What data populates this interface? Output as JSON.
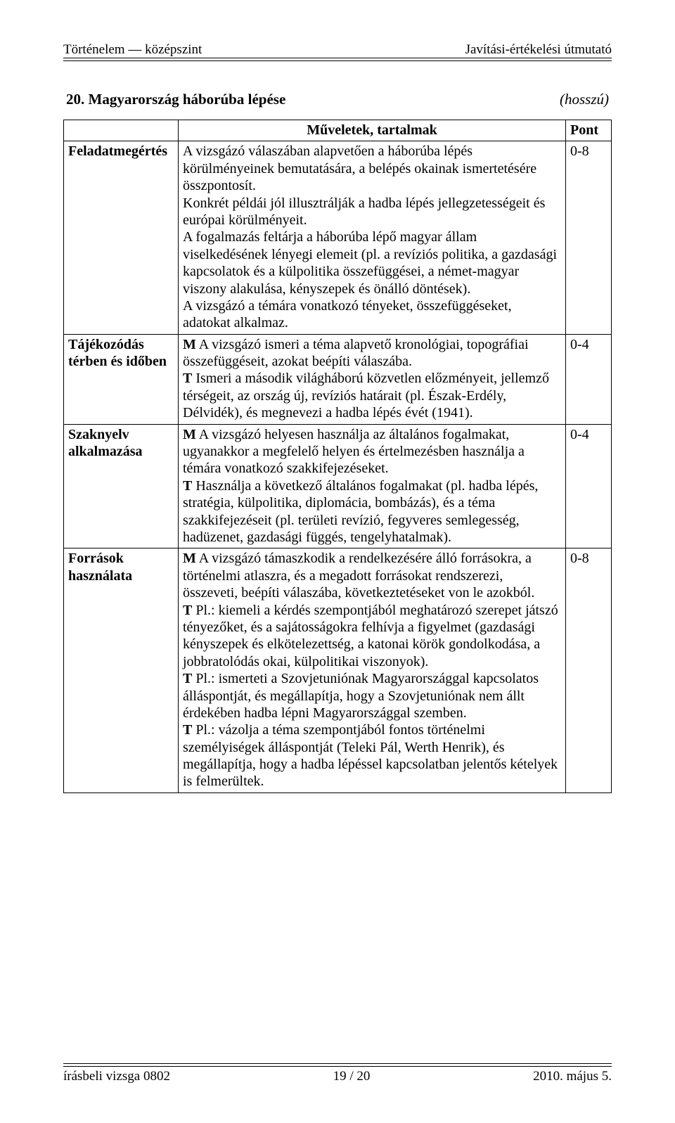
{
  "header": {
    "left": "Történelem — középszint",
    "right": "Javítási-értékelési útmutató"
  },
  "title": {
    "number_label": "20. Magyarország háborúba lépése",
    "type": "(hosszú)"
  },
  "table": {
    "head_center": "Műveletek, tartalmak",
    "head_right": "Pont",
    "rows": [
      {
        "label": "Feladatmegértés",
        "content": "A vizsgázó válaszában alapvetően a háborúba lépés körülményeinek bemutatására, a belépés okainak ismertetésére összpontosít.\nKonkrét példái jól illusztrálják a hadba lépés jellegzetességeit és európai körülményeit.\nA fogalmazás feltárja a háborúba lépő magyar állam viselkedésének lényegi elemeit (pl. a revíziós politika, a gazdasági kapcsolatok és a külpolitika összefüggései, a német-magyar viszony alakulása, kényszерek és önálló döntések).\nA vizsgázó a témára vonatkozó tényeket, összefüggéseket, adatokat alkalmaz.",
        "points": "0-8"
      },
      {
        "label": "Tájékozódás térben és időben",
        "content": "M A vizsgázó ismeri a téma alapvető kronológiai, topográfiai összefüggéseit, azokat beépíti válaszába.\nT Ismeri a második világháború közvetlen előzményeit, jellemző térségeit, az ország új, revíziós határait (pl. Észak-Erdély, Délvidék), és megnevezi a hadba lépés évét (1941).",
        "points": "0-4"
      },
      {
        "label": "Szaknyelv alkalmazása",
        "content": "M A vizsgázó helyesen használja az általános fogalmakat, ugyanakkor a megfelelő helyen és értelmezésben használja a témára vonatkozó szakkifejezéseket.\nT Használja a következő általános fogalmakat (pl. hadba lépés, stratégia, külpolitika, diplomácia, bombázás), és a téma szakkifejezéseit (pl. területi revízió, fegyveres semlegesség, hadüzenet, gazdasági függés, tengelyhatalmak).",
        "points": "0-4"
      },
      {
        "label": "Források használata",
        "content": "M A vizsgázó támaszkodik a rendelkezésére álló forrásokra, a történelmi atlaszra, és a megadott forrásokat rendszerezi, összeveti, beépíti válaszába, következtetéseket von le azokból.\nT Pl.: kiemeli a kérdés szempontjából meghatározó szerepet játszó tényezőket, és a sajátosságokra felhívja a figyelmet (gazdasági kényszерek és elkötelezettség, a katonai körök gondolkodása, a jobbratolódás okai, külpolitikai viszonyok).\nT Pl.: ismerteti a Szovjetuniónak Magyarországgal kapcsolatos álláspontját, és megállapítja, hogy a Szovjetuniónak nem állt érdekében hadba lépni Magyarországgal szemben.\nT Pl.: vázolja a téma szempontjából fontos történelmi személyiségek álláspontját (Teleki Pál, Werth Henrik), és megállapítja, hogy a hadba lépéssel kapcsolatban jelentős kételyek is felmerültek.",
        "points": "0-8"
      }
    ]
  },
  "footer": {
    "left": "írásbeli vizsga 0802",
    "center": "19 / 20",
    "right": "2010. május 5."
  }
}
